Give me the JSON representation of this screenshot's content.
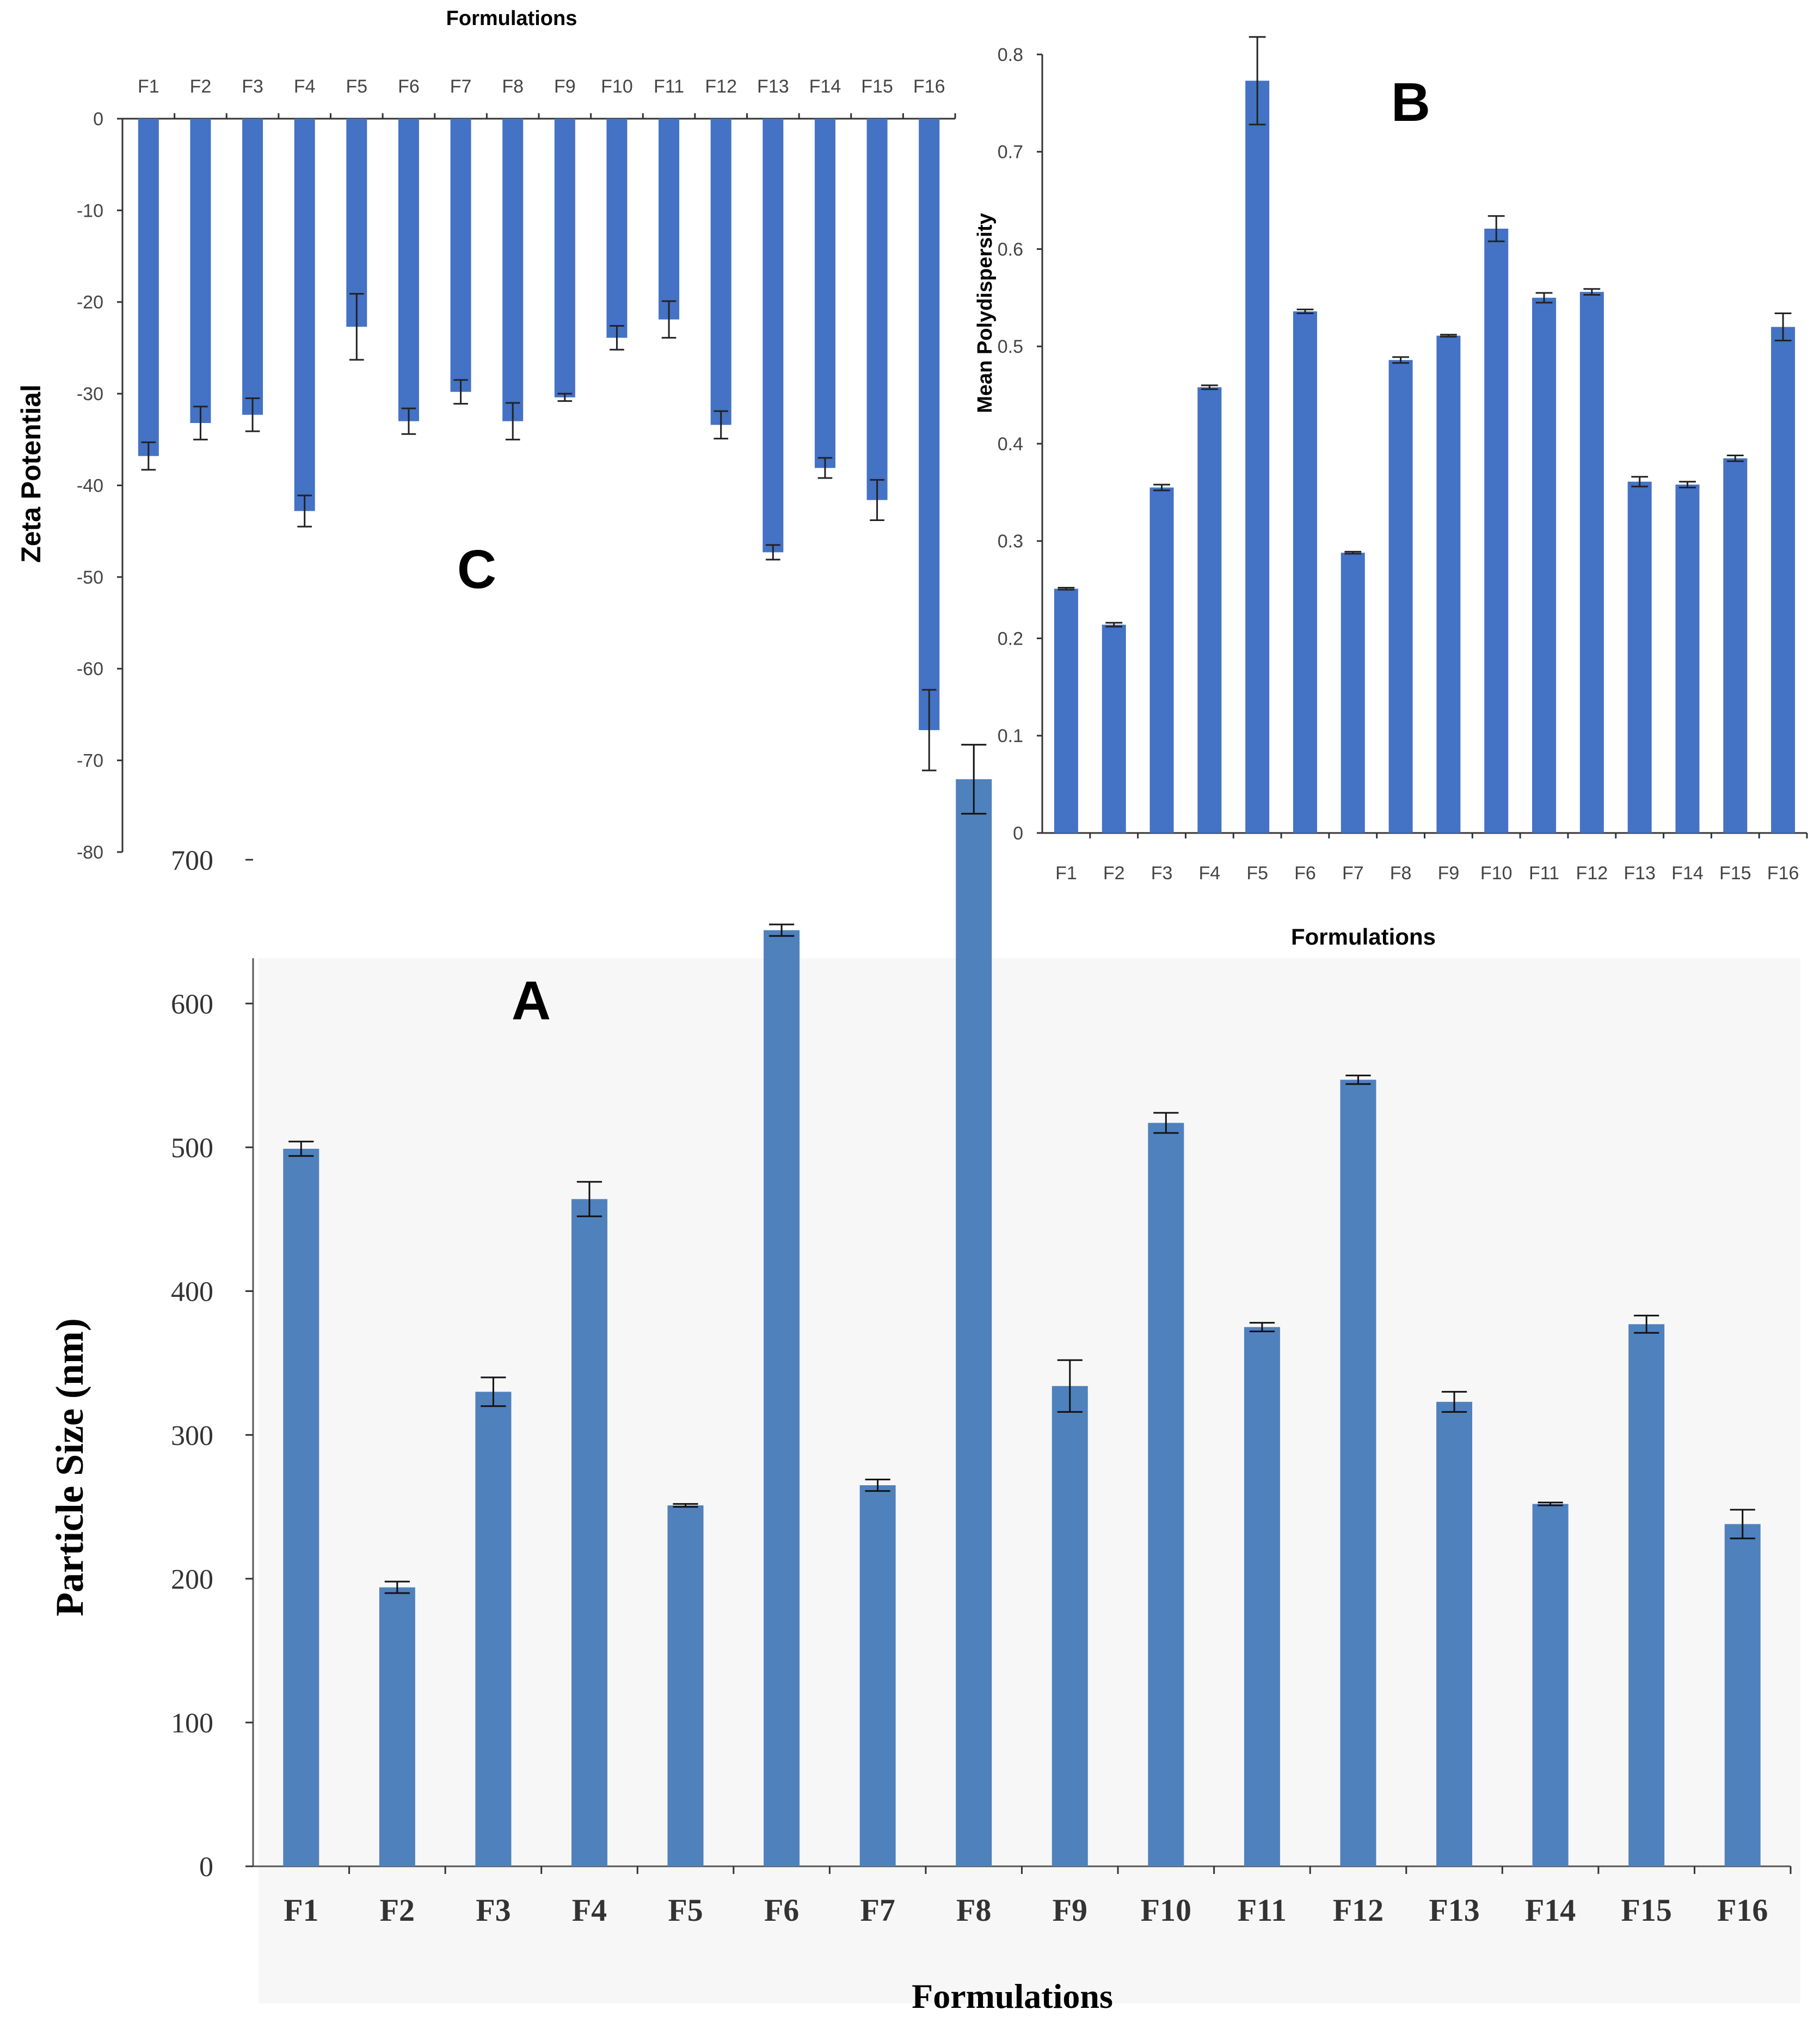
{
  "chart_data": [
    {
      "id": "C",
      "panel_letter": "C",
      "type": "bar",
      "title": "",
      "xlabel": "Formulations",
      "ylabel": "Zeta Potential",
      "categories": [
        "F1",
        "F2",
        "F3",
        "F4",
        "F5",
        "F6",
        "F7",
        "F8",
        "F9",
        "F10",
        "F11",
        "F12",
        "F13",
        "F14",
        "F15",
        "F16"
      ],
      "series": [
        {
          "values": [
            -36.8,
            -33.2,
            -32.3,
            -42.8,
            -22.7,
            -33,
            -29.8,
            -33,
            -30.4,
            -23.9,
            -21.9,
            -33.4,
            -47.3,
            -38.1,
            -41.6,
            -66.7
          ],
          "errors": [
            1.5,
            1.8,
            1.8,
            1.7,
            3.6,
            1.4,
            1.3,
            2,
            0.4,
            1.3,
            2,
            1.5,
            0.8,
            1.1,
            2.2,
            4.4
          ]
        }
      ],
      "ylim": [
        -80,
        0
      ],
      "yticks": [
        0,
        -10,
        -20,
        -30,
        -40,
        -50,
        -60,
        -70,
        -80
      ],
      "x_axis_position": "top",
      "grid": false,
      "bar_color": "#4472c4"
    },
    {
      "id": "B",
      "panel_letter": "B",
      "type": "bar",
      "title": "",
      "xlabel": "Formulations",
      "ylabel": "Mean Polydispersity",
      "categories": [
        "F1",
        "F2",
        "F3",
        "F4",
        "F5",
        "F6",
        "F7",
        "F8",
        "F9",
        "F10",
        "F11",
        "F12",
        "F13",
        "F14",
        "F15",
        "F16"
      ],
      "series": [
        {
          "values": [
            0.251,
            0.214,
            0.355,
            0.458,
            0.773,
            0.536,
            0.288,
            0.486,
            0.511,
            0.621,
            0.55,
            0.556,
            0.361,
            0.358,
            0.385,
            0.52
          ],
          "errors": [
            0.001,
            0.002,
            0.003,
            0.002,
            0.045,
            0.002,
            0.001,
            0.003,
            0.001,
            0.013,
            0.005,
            0.003,
            0.005,
            0.003,
            0.003,
            0.014
          ]
        }
      ],
      "ylim": [
        0,
        0.8
      ],
      "yticks": [
        "0",
        "0.1",
        "0.2",
        "0.3",
        "0.4",
        "0.5",
        "0.6",
        "0.7",
        "0.8"
      ],
      "grid": false,
      "bar_color": "#4472c4"
    },
    {
      "id": "A",
      "panel_letter": "A",
      "type": "bar",
      "title": "",
      "xlabel": "Formulations",
      "ylabel": "Particle Size (nm)",
      "categories": [
        "F1",
        "F2",
        "F3",
        "F4",
        "F5",
        "F6",
        "F7",
        "F8",
        "F9",
        "F10",
        "F11",
        "F12",
        "F13",
        "F14",
        "F15",
        "F16"
      ],
      "series": [
        {
          "values": [
            499,
            194,
            330,
            464,
            251,
            651,
            265,
            756,
            334,
            517,
            375,
            547,
            323,
            252,
            377,
            238
          ],
          "errors": [
            5,
            4,
            10,
            12,
            1,
            4,
            4,
            24,
            18,
            7,
            3,
            3,
            7,
            1,
            6,
            10
          ]
        }
      ],
      "ylim": [
        0,
        800
      ],
      "yticks": [
        0,
        100,
        200,
        300,
        400,
        500,
        600,
        700
      ],
      "grid": false,
      "bar_color": "#4f81bd"
    }
  ]
}
